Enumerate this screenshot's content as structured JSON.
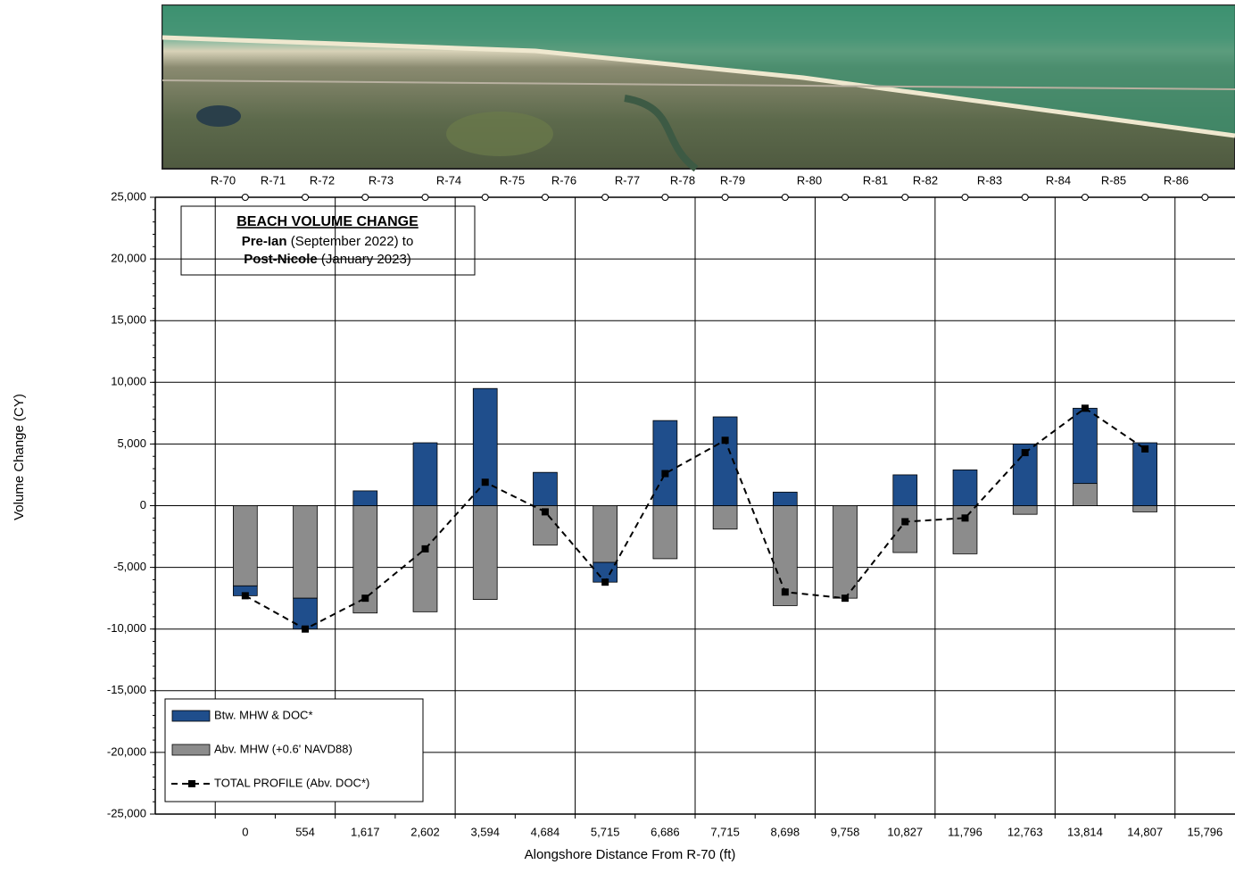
{
  "chart_data": {
    "type": "bar",
    "title": "BEACH VOLUME CHANGE",
    "subtitle_lines": [
      {
        "bold": "Pre-Ian",
        "text": " (September 2022) to"
      },
      {
        "bold": "Post-Nicole",
        "text": " (January 2023)"
      }
    ],
    "profile_labels": [
      "R-70",
      "R-71",
      "R-72",
      "R-73",
      "R-74",
      "R-75",
      "R-76",
      "R-77",
      "R-78",
      "R-79",
      "R-80",
      "R-81",
      "R-82",
      "R-83",
      "R-84",
      "R-85",
      "R-86"
    ],
    "x_label": "Alongshore Distance From R-70 (ft)",
    "y_label": "Volume Change (CY)",
    "categories": [
      null,
      "0",
      "554",
      "1,617",
      "2,602",
      "3,594",
      "4,684",
      "5,715",
      "6,686",
      "7,715",
      "8,698",
      "9,758",
      "10,827",
      "11,796",
      "12,763",
      "13,814",
      "14,807",
      "15,796"
    ],
    "stacked": true,
    "series": [
      {
        "name": "Btw. MHW & DOC*",
        "color": "#1f4e8c",
        "type": "bar",
        "values": [
          null,
          -800,
          -2500,
          1200,
          5100,
          9500,
          2700,
          -1600,
          6900,
          7200,
          1100,
          0,
          2500,
          2900,
          5000,
          6100,
          5100,
          null
        ]
      },
      {
        "name": "Abv. MHW (+0.6' NAVD88)",
        "color": "#8c8c8c",
        "type": "bar",
        "values": [
          null,
          -6500,
          -7500,
          -8700,
          -8600,
          -7600,
          -3200,
          -4600,
          -4300,
          -1900,
          -8100,
          -7500,
          -3800,
          -3900,
          -700,
          1800,
          -500,
          null
        ]
      },
      {
        "name": "TOTAL PROFILE (Abv. DOC*)",
        "color": "#000000",
        "type": "line",
        "values": [
          null,
          -7300,
          -10000,
          -7500,
          -3500,
          1900,
          -500,
          -6200,
          2600,
          5300,
          -7000,
          -7500,
          -1300,
          -1000,
          4300,
          7900,
          4600,
          null
        ]
      }
    ],
    "ylim": [
      -25000,
      25000
    ],
    "yticks": [
      {
        "value": -25000,
        "label": "-25,000"
      },
      {
        "value": -20000,
        "label": "-20,000"
      },
      {
        "value": -15000,
        "label": "-15,000"
      },
      {
        "value": -10000,
        "label": "-10,000"
      },
      {
        "value": -5000,
        "label": "-5,000"
      },
      0,
      {
        "value": 5000,
        "label": "5,000"
      },
      {
        "value": 10000,
        "label": "10,000"
      },
      {
        "value": 15000,
        "label": "15,000"
      },
      {
        "value": 20000,
        "label": "20,000"
      },
      {
        "value": 25000,
        "label": "25,000"
      }
    ],
    "grid": true,
    "legend": "lower left"
  }
}
